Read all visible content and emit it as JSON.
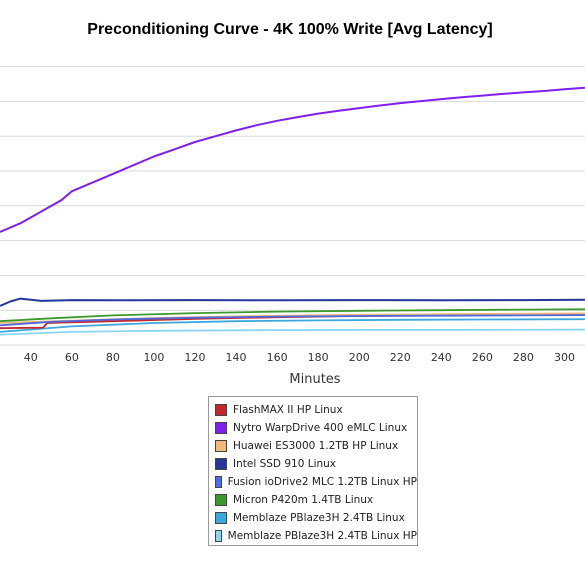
{
  "chart_data": {
    "type": "line",
    "title": "Preconditioning Curve - 4K 100% Write [Avg Latency]",
    "xlabel": "Minutes",
    "ylabel": "",
    "xlim": [
      25,
      310
    ],
    "ylim": [
      0,
      100
    ],
    "x_ticks": [
      40,
      60,
      80,
      100,
      120,
      140,
      160,
      180,
      200,
      220,
      240,
      260,
      280,
      300
    ],
    "y_grid": [
      0,
      12,
      24,
      36,
      48,
      60,
      72,
      84,
      96
    ],
    "grid": true,
    "legend_position": "bottom",
    "series": [
      {
        "name": "FlashMAX II HP Linux",
        "color": "#c0282d",
        "x": [
          25,
          46,
          48,
          80,
          120,
          160,
          200,
          240,
          280,
          310
        ],
        "y": [
          5.8,
          6,
          7.6,
          8.2,
          9.0,
          9.6,
          10.0,
          10.4,
          10.6,
          10.7
        ]
      },
      {
        "name": "Nytro WarpDrive 400 eMLC Linux",
        "color": "#7f1ff0",
        "x": [
          25,
          35,
          45,
          55,
          60,
          70,
          80,
          90,
          100,
          110,
          120,
          130,
          140,
          150,
          160,
          170,
          180,
          190,
          200,
          210,
          220,
          230,
          240,
          250,
          260,
          270,
          280,
          290,
          300,
          310
        ],
        "y": [
          39,
          42,
          46,
          50,
          53,
          56,
          59,
          62,
          65,
          67.5,
          70,
          72,
          74,
          75.8,
          77.3,
          78.6,
          79.8,
          80.8,
          81.7,
          82.6,
          83.4,
          84.1,
          84.8,
          85.4,
          86,
          86.6,
          87.1,
          87.6,
          88.2,
          88.7
        ]
      },
      {
        "name": "Huawei ES3000 1.2TB HP Linux",
        "color": "#f0b87a",
        "x": [
          25,
          60,
          100,
          150,
          200,
          250,
          310
        ],
        "y": [
          7.6,
          8.4,
          9.3,
          10.0,
          10.4,
          10.7,
          10.9
        ]
      },
      {
        "name": "Intel SSD 910 Linux",
        "color": "#23379b",
        "x": [
          25,
          30,
          35,
          40,
          45,
          50,
          60,
          80,
          120,
          160,
          200,
          240,
          280,
          310
        ],
        "y": [
          13.5,
          15,
          16,
          15.6,
          15.2,
          15.3,
          15.5,
          15.4,
          15.5,
          15.4,
          15.5,
          15.4,
          15.5,
          15.6
        ]
      },
      {
        "name": "Fusion ioDrive2 MLC 1.2TB Linux HP",
        "color": "#4f6bdc",
        "x": [
          25,
          50,
          80,
          120,
          160,
          200,
          240,
          280,
          310
        ],
        "y": [
          6.8,
          8.0,
          8.8,
          9.4,
          9.8,
          10.0,
          10.1,
          10.2,
          10.3
        ]
      },
      {
        "name": "Micron P420m 1.4TB Linux",
        "color": "#3a9a2c",
        "x": [
          25,
          50,
          80,
          120,
          160,
          200,
          240,
          280,
          310
        ],
        "y": [
          8.2,
          9.2,
          10.2,
          11.0,
          11.5,
          11.8,
          12.0,
          12.2,
          12.3
        ]
      },
      {
        "name": "Memblaze PBlaze3H 2.4TB Linux",
        "color": "#3ca8dd",
        "x": [
          25,
          60,
          100,
          140,
          180,
          220,
          260,
          310
        ],
        "y": [
          4.5,
          6.4,
          7.6,
          8.2,
          8.5,
          8.7,
          8.8,
          8.9
        ]
      },
      {
        "name": "Memblaze PBlaze3H 2.4TB Linux HP",
        "color": "#8ad6f2",
        "x": [
          25,
          60,
          100,
          150,
          200,
          250,
          310
        ],
        "y": [
          3.6,
          4.5,
          4.9,
          5.1,
          5.2,
          5.2,
          5.3
        ]
      }
    ]
  }
}
